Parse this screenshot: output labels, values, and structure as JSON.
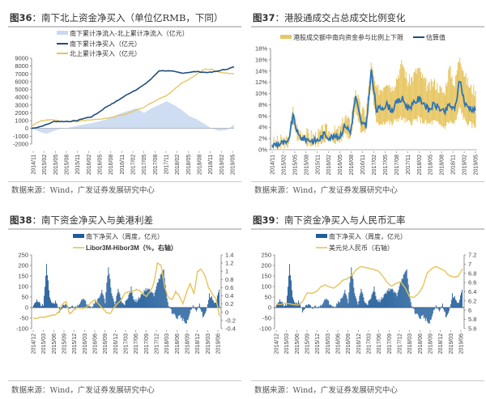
{
  "colors": {
    "navy": "#1f4e79",
    "blue": "#2e75b6",
    "gold": "#e8c766",
    "goldLine": "#e6c35c",
    "area": "#c9d9f0",
    "bar": "#1f5c99"
  },
  "source_text": "数据来源：Wind，广发证券发展研究中心",
  "chart_data": [
    {
      "id": "fig36",
      "type": "line",
      "title_prefix": "图36",
      "title": "：南下北上资金净买入（单位亿RMB，下同）",
      "legend": [
        "南下累计净流入-北上累计净流入（亿元）",
        "南下累计净买入（亿元）",
        "北上累计净买入（亿元）"
      ],
      "ylim": [
        -2000,
        9000
      ],
      "yticks": [
        "9000",
        "8000",
        "7000",
        "6000",
        "5000",
        "4000",
        "3000",
        "2000",
        "1000",
        "0",
        "-1000",
        "-2000"
      ],
      "xticks": [
        "2014/11",
        "2015/02",
        "2015/05",
        "2015/08",
        "2015/11",
        "2016/02",
        "2016/05",
        "2016/08",
        "2016/11",
        "2017/02",
        "2017/05",
        "2017/08",
        "2017/11",
        "2018/02",
        "2018/05",
        "2018/08",
        "2018/11",
        "2019/02",
        "2019/05"
      ],
      "series": [
        {
          "name": "南下累计净流入-北上累计净流入（亿元）",
          "kind": "area",
          "values": [
            0,
            -400,
            -700,
            -300,
            0,
            100,
            300,
            500,
            700,
            900,
            1200,
            1600,
            2000,
            2300,
            2600,
            2000,
            2600,
            3000,
            3500,
            3000,
            2400,
            1600,
            1200,
            600,
            0,
            -300,
            -200,
            500
          ]
        },
        {
          "name": "南下累计净买入（亿元）",
          "kind": "line",
          "values": [
            0,
            200,
            500,
            900,
            900,
            900,
            1000,
            1300,
            1500,
            2100,
            2800,
            3300,
            3900,
            4500,
            5000,
            5600,
            6400,
            7400,
            7400,
            7300,
            7100,
            7200,
            7300,
            7200,
            7200,
            7400,
            7600,
            7900
          ]
        },
        {
          "name": "北上累计净买入（亿元）",
          "kind": "line",
          "values": [
            300,
            900,
            1100,
            1100,
            900,
            900,
            900,
            1000,
            1100,
            1200,
            1300,
            1500,
            1700,
            2000,
            2400,
            2700,
            3300,
            3800,
            4200,
            5000,
            5800,
            6300,
            6900,
            7600,
            7600,
            7200,
            7100,
            7000
          ]
        }
      ]
    },
    {
      "id": "fig37",
      "type": "line",
      "title_prefix": "图37",
      "title": "：港股通成交占总成交比例变化",
      "legend": [
        "港股成交额中南向资金参与比例上下限",
        "估算值"
      ],
      "ylim": [
        0,
        18
      ],
      "yticks": [
        "18%",
        "16%",
        "14%",
        "12%",
        "10%",
        "8%",
        "6%",
        "4%",
        "2%",
        "0%"
      ],
      "xticks": [
        "2014/11",
        "2015/02",
        "2015/05",
        "2015/08",
        "2015/11",
        "2016/02",
        "2016/05",
        "2016/08",
        "2016/11",
        "2017/02",
        "2017/05",
        "2017/08",
        "2017/11",
        "2018/02",
        "2018/05",
        "2018/08",
        "2018/11",
        "2019/02",
        "2019/05"
      ],
      "series": [
        {
          "name": "估算值",
          "values": [
            0.8,
            1.0,
            1.2,
            1.0,
            6.0,
            2.5,
            2.0,
            1.8,
            1.5,
            1.8,
            2.8,
            2.2,
            2.3,
            2.4,
            4.5,
            3.0,
            9.5,
            5.0,
            4.0,
            14.0,
            7.0,
            7.5,
            8.0,
            7.0,
            8.5,
            9.0,
            7.5,
            8.0,
            9.0,
            8.5,
            7.0,
            8.0,
            7.5,
            6.5,
            8.0,
            7.0,
            12.5,
            8.0,
            7.5,
            7.0
          ]
        },
        {
          "name": "上限",
          "values": [
            1.2,
            1.5,
            1.8,
            1.5,
            7.0,
            3.5,
            3.0,
            2.8,
            2.5,
            2.8,
            3.8,
            3.2,
            3.3,
            3.5,
            6.0,
            4.5,
            11.0,
            7.0,
            6.5,
            15.0,
            10.5,
            11.0,
            12.5,
            11.0,
            13.0,
            15.5,
            12.0,
            13.0,
            14.5,
            12.5,
            11.0,
            12.0,
            11.0,
            10.0,
            14.5,
            11.5,
            17.0,
            13.0,
            11.0,
            10.5
          ]
        },
        {
          "name": "下限",
          "values": [
            0.4,
            0.6,
            0.7,
            0.6,
            4.5,
            1.5,
            1.2,
            1.0,
            0.8,
            1.0,
            1.8,
            1.5,
            1.5,
            1.5,
            3.0,
            2.0,
            7.5,
            3.5,
            3.0,
            12.0,
            4.5,
            4.8,
            5.0,
            4.5,
            5.5,
            5.5,
            4.8,
            5.0,
            5.5,
            5.0,
            4.5,
            5.0,
            4.5,
            4.0,
            5.0,
            4.5,
            7.5,
            5.0,
            4.5,
            4.0
          ]
        }
      ]
    },
    {
      "id": "fig38",
      "type": "bar",
      "title_prefix": "图38",
      "title": "：南下资金净买入与美港利差",
      "legend": [
        "南下净买入（周度，亿元）",
        "Libor3M-Hibor3M（%，右轴）"
      ],
      "ylim": [
        -100,
        250
      ],
      "y2lim": [
        -0.4,
        1.4
      ],
      "yticks": [
        "250",
        "200",
        "150",
        "100",
        "50",
        "0",
        "-50",
        "-100"
      ],
      "y2ticks": [
        "1.4",
        "1.2",
        "1",
        "0.8",
        "0.6",
        "0.4",
        "0.2",
        "0",
        "-0.2",
        "-0.4"
      ],
      "xticks": [
        "2014/12",
        "2015/03",
        "2015/06",
        "2015/09",
        "2015/12",
        "2016/03",
        "2016/06",
        "2016/09",
        "2016/12",
        "2017/03",
        "2017/06",
        "2017/09",
        "2017/12",
        "2018/03",
        "2018/06",
        "2018/09",
        "2018/12",
        "2019/03",
        "2019/06"
      ],
      "series": [
        {
          "name": "南下净买入（周度，亿元）",
          "values": [
            20,
            35,
            15,
            5,
            200,
            40,
            20,
            30,
            -20,
            5,
            10,
            -5,
            5,
            0,
            20,
            45,
            25,
            15,
            5,
            30,
            40,
            85,
            20,
            200,
            60,
            15,
            90,
            30,
            20,
            40,
            95,
            30,
            35,
            60,
            80,
            90,
            75,
            60,
            120,
            150,
            175,
            40,
            -10,
            -30,
            -50,
            -40,
            -60,
            -80,
            -30,
            10,
            -20,
            15,
            -40,
            -20,
            60,
            40,
            20,
            85
          ]
        },
        {
          "name": "Libor3M-Hibor3M（%，右轴）",
          "values": [
            -0.15,
            -0.14,
            -0.13,
            -0.12,
            -0.1,
            -0.08,
            -0.05,
            0.0,
            0.2,
            0.25,
            -0.05,
            0.05,
            0.1,
            0.1,
            0.1,
            0.15,
            0.25,
            0.3,
            0.2,
            0.1,
            0.0,
            -0.05,
            0.1,
            0.2,
            0.3,
            0.45,
            0.5,
            0.5,
            0.55,
            0.55,
            0.45,
            0.4,
            0.5,
            0.7,
            1.2,
            1.15,
            0.6,
            0.35,
            0.3,
            0.5,
            0.4,
            0.2,
            0.5,
            0.7,
            0.45,
            1.0,
            1.05,
            0.9,
            0.6,
            0.45,
            0.35,
            -0.1
          ]
        }
      ]
    },
    {
      "id": "fig39",
      "type": "bar",
      "title_prefix": "图39",
      "title": "：南下资金净买入与人民币汇率",
      "legend": [
        "南下净买入（周度，亿元）",
        "美元兑人民币（右轴）"
      ],
      "ylim": [
        -100,
        250
      ],
      "y2lim": [
        5.6,
        7.2
      ],
      "yticks": [
        "250",
        "200",
        "150",
        "100",
        "50",
        "0",
        "-50",
        "-100"
      ],
      "y2ticks": [
        "7.2",
        "7",
        "6.8",
        "6.6",
        "6.4",
        "6.2",
        "6",
        "5.8",
        "5.6"
      ],
      "xticks": [
        "2014/12",
        "2015/03",
        "2015/06",
        "2015/09",
        "2015/12",
        "2016/03",
        "2016/06",
        "2016/09",
        "2016/12",
        "2017/03",
        "2017/06",
        "2017/09",
        "2017/12",
        "2018/03",
        "2018/06",
        "2018/09",
        "2018/12",
        "2019/03",
        "2019/06"
      ],
      "series": [
        {
          "name": "南下净买入（周度，亿元）",
          "values": [
            20,
            35,
            15,
            5,
            200,
            40,
            20,
            30,
            -20,
            5,
            10,
            -5,
            5,
            0,
            20,
            45,
            25,
            15,
            5,
            30,
            40,
            85,
            20,
            200,
            60,
            15,
            90,
            30,
            20,
            40,
            95,
            30,
            35,
            60,
            80,
            90,
            75,
            60,
            120,
            150,
            175,
            40,
            -10,
            -30,
            -50,
            -40,
            -60,
            -80,
            -30,
            10,
            -20,
            15,
            -40,
            -20,
            60,
            40,
            20,
            85
          ]
        },
        {
          "name": "美元兑人民币（右轴）",
          "values": [
            6.13,
            6.13,
            6.15,
            6.14,
            6.12,
            6.11,
            6.2,
            6.38,
            6.36,
            6.4,
            6.5,
            6.55,
            6.5,
            6.48,
            6.55,
            6.65,
            6.68,
            6.75,
            6.88,
            6.95,
            6.93,
            6.9,
            6.88,
            6.85,
            6.75,
            6.6,
            6.52,
            6.58,
            6.62,
            6.5,
            6.3,
            6.28,
            6.35,
            6.5,
            6.8,
            6.9,
            6.95,
            6.9,
            6.85,
            6.75,
            6.72,
            6.73,
            6.9
          ]
        }
      ]
    }
  ]
}
